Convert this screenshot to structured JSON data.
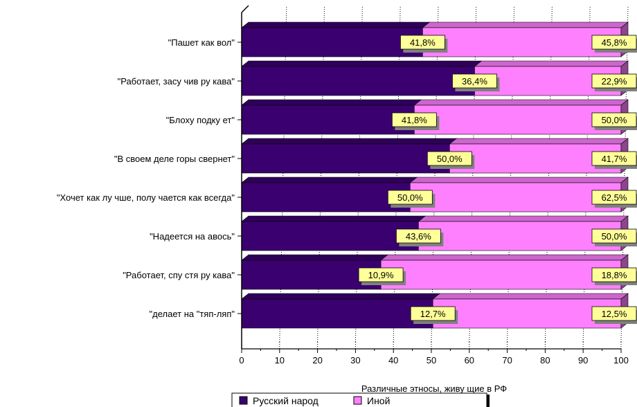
{
  "chart_data": {
    "type": "bar",
    "orientation": "horizontal",
    "stacked": "overlap-100",
    "categories": [
      "\"Пашет как вол\"",
      "\"Работает, засу чив ру кава\"",
      "\"Блоху подку ет\"",
      "\"В своем деле горы свернет\"",
      "\"Хочет как лу чше, полу чается как всегда\"",
      "\"Надеется на авось\"",
      "\"Работает, спу стя ру кава\"",
      "\"делает на \"тяп-ляп\""
    ],
    "series": [
      {
        "name": "Русский народ",
        "color": "#3b0070",
        "values": [
          47.7,
          61.4,
          45.5,
          54.8,
          44.4,
          46.6,
          36.7,
          50.4
        ],
        "labels": [
          "41,8%",
          "36,4%",
          "41,8%",
          "50,0%",
          "50,0%",
          "43,6%",
          "10,9%",
          "12,7%"
        ]
      },
      {
        "name": "Иной",
        "color": "#ff80ff",
        "values": [
          52.3,
          38.6,
          54.5,
          45.2,
          55.6,
          53.4,
          63.3,
          49.6
        ],
        "labels": [
          "45,8%",
          "22,9%",
          "50,0%",
          "41,7%",
          "62,5%",
          "50,0%",
          "18,8%",
          "12,5%"
        ]
      }
    ],
    "xlabel": "Различные этносы, живу щие в РФ",
    "xlim": [
      0,
      100
    ],
    "xticks": [
      "0",
      "10",
      "20",
      "30",
      "40",
      "50",
      "60",
      "70",
      "80",
      "90",
      "100"
    ],
    "grid": "vertical-dotted",
    "legend": "bottom-center",
    "label_fill": "#ffff99"
  }
}
